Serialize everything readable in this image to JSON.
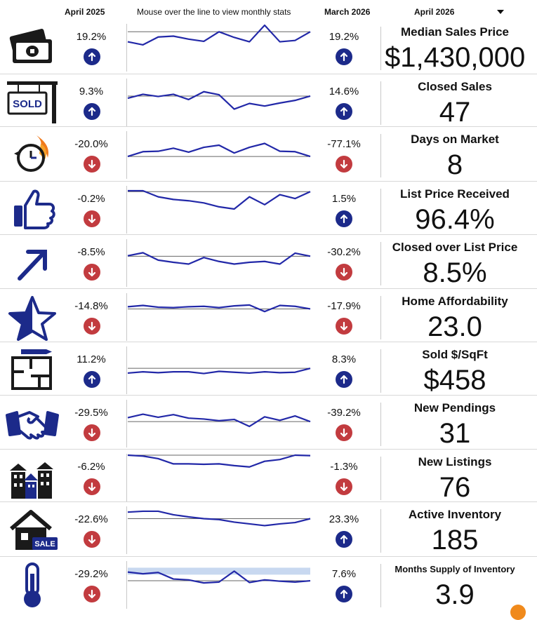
{
  "header": {
    "col1": "April 2025",
    "col_mid": "Mouse over the line to view monthly stats",
    "col2": "March 2026",
    "select": "April 2026"
  },
  "colors": {
    "up": "#1c2a8a",
    "down": "#c23b3f",
    "line": "#2228a8",
    "ref": "#666666"
  },
  "rows": [
    {
      "name": "median-sales-price",
      "icon": "money-icon",
      "left_pct": "19.2%",
      "left_dir": "up",
      "right_pct": "19.2%",
      "right_dir": "up",
      "title": "Median Sales Price",
      "value": "$1,430,000",
      "spark": [
        0.62,
        0.55,
        0.73,
        0.75,
        0.68,
        0.63,
        0.85,
        0.72,
        0.62,
        1.0,
        0.62,
        0.65,
        0.85
      ],
      "ref": 0.85,
      "band": null
    },
    {
      "name": "closed-sales",
      "icon": "sold-sign-icon",
      "left_pct": "9.3%",
      "left_dir": "up",
      "right_pct": "14.6%",
      "right_dir": "up",
      "title": "Closed Sales",
      "value": "47",
      "spark": [
        0.58,
        0.67,
        0.62,
        0.67,
        0.55,
        0.73,
        0.66,
        0.33,
        0.46,
        0.4,
        0.47,
        0.53,
        0.63
      ],
      "ref": 0.63,
      "band": null
    },
    {
      "name": "days-on-market",
      "icon": "clock-fire-icon",
      "left_pct": "-20.0%",
      "left_dir": "down",
      "right_pct": "-77.1%",
      "right_dir": "down",
      "title": "Days on Market",
      "value": "8",
      "spark": [
        0.45,
        0.56,
        0.57,
        0.64,
        0.55,
        0.66,
        0.71,
        0.53,
        0.66,
        0.75,
        0.57,
        0.56,
        0.45
      ],
      "ref": 0.45,
      "band": null
    },
    {
      "name": "list-price-received",
      "icon": "thumbs-up-icon",
      "left_pct": "-0.2%",
      "left_dir": "down",
      "right_pct": "1.5%",
      "right_dir": "up",
      "title": "List Price Received",
      "value": "96.4%",
      "spark": [
        0.92,
        0.92,
        0.78,
        0.72,
        0.69,
        0.64,
        0.55,
        0.5,
        0.78,
        0.6,
        0.83,
        0.74,
        0.9
      ],
      "ref": 0.9,
      "band": null
    },
    {
      "name": "closed-over-list-price",
      "icon": "arrow-up-right-icon",
      "left_pct": "-8.5%",
      "left_dir": "down",
      "right_pct": "-30.2%",
      "right_dir": "down",
      "title": "Closed over List Price",
      "value": "8.5%",
      "spark": [
        0.65,
        0.72,
        0.55,
        0.5,
        0.46,
        0.61,
        0.52,
        0.46,
        0.5,
        0.52,
        0.46,
        0.71,
        0.64
      ],
      "ref": 0.64,
      "band": null
    },
    {
      "name": "home-affordability",
      "icon": "star-icon",
      "left_pct": "-14.8%",
      "left_dir": "down",
      "right_pct": "-17.9%",
      "right_dir": "down",
      "title": "Home Affordability",
      "value": "23.0",
      "spark": [
        0.72,
        0.75,
        0.71,
        0.7,
        0.72,
        0.73,
        0.7,
        0.74,
        0.76,
        0.61,
        0.75,
        0.73,
        0.67
      ],
      "ref": 0.67,
      "band": null
    },
    {
      "name": "sold-per-sqft",
      "icon": "floor-plan-icon",
      "left_pct": "11.2%",
      "left_dir": "up",
      "right_pct": "8.3%",
      "right_dir": "up",
      "title": "Sold $/SqFt",
      "value": "$458",
      "spark": [
        0.42,
        0.45,
        0.43,
        0.45,
        0.45,
        0.41,
        0.46,
        0.44,
        0.42,
        0.45,
        0.43,
        0.44,
        0.53
      ],
      "ref": 0.53,
      "band": null
    },
    {
      "name": "new-pendings",
      "icon": "handshake-icon",
      "left_pct": "-29.5%",
      "left_dir": "down",
      "right_pct": "-39.2%",
      "right_dir": "down",
      "title": "New Pendings",
      "value": "31",
      "spark": [
        0.62,
        0.7,
        0.63,
        0.69,
        0.61,
        0.59,
        0.55,
        0.58,
        0.42,
        0.64,
        0.56,
        0.66,
        0.53
      ],
      "ref": 0.53,
      "band": null
    },
    {
      "name": "new-listings",
      "icon": "buildings-icon",
      "left_pct": "-6.2%",
      "left_dir": "down",
      "right_pct": "-1.3%",
      "right_dir": "down",
      "title": "New Listings",
      "value": "76",
      "spark": [
        1.0,
        0.98,
        0.92,
        0.8,
        0.8,
        0.79,
        0.8,
        0.76,
        0.73,
        0.86,
        0.9,
        1.0,
        0.99
      ],
      "ref": 1.0,
      "band": null
    },
    {
      "name": "active-inventory",
      "icon": "house-sale-icon",
      "left_pct": "-22.6%",
      "left_dir": "down",
      "right_pct": "23.3%",
      "right_dir": "up",
      "title": "Active Inventory",
      "value": "185",
      "spark": [
        0.9,
        0.92,
        0.92,
        0.84,
        0.79,
        0.75,
        0.73,
        0.67,
        0.63,
        0.59,
        0.63,
        0.66,
        0.75
      ],
      "ref": 0.75,
      "band": null
    },
    {
      "name": "months-supply-of-inventory",
      "icon": "thermometer-icon",
      "left_pct": "-29.2%",
      "left_dir": "down",
      "right_pct": "7.6%",
      "right_dir": "up",
      "title": "Months Supply of Inventory",
      "value": "3.9",
      "spark": [
        0.78,
        0.74,
        0.77,
        0.62,
        0.6,
        0.53,
        0.55,
        0.8,
        0.54,
        0.6,
        0.57,
        0.55,
        0.58
      ],
      "ref": 0.58,
      "band": [
        0.72,
        0.88
      ]
    }
  ]
}
